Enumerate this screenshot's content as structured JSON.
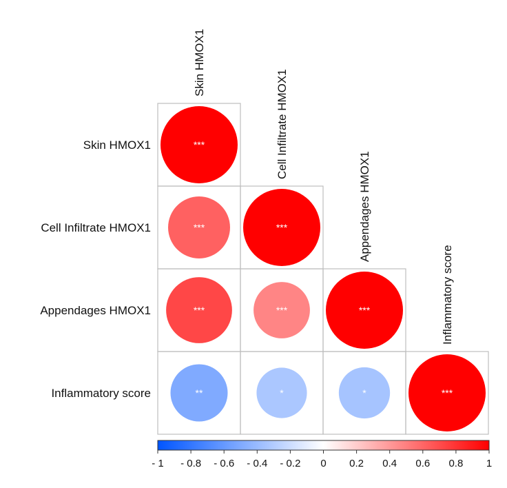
{
  "chart_data": {
    "type": "heatmap",
    "subtype": "correlogram-lower-triangle",
    "variables": [
      "Skin HMOX1",
      "Cell Infiltrate HMOX1",
      "Appendages HMOX1",
      "Inflammatory score"
    ],
    "correlations": [
      [
        1.0,
        null,
        null,
        null
      ],
      [
        0.62,
        1.0,
        null,
        null
      ],
      [
        0.72,
        0.48,
        1.0,
        null
      ],
      [
        -0.5,
        -0.33,
        -0.35,
        1.0
      ]
    ],
    "significance": [
      [
        "***",
        null,
        null,
        null
      ],
      [
        "***",
        "***",
        null,
        null
      ],
      [
        "***",
        "***",
        "***",
        null
      ],
      [
        "**",
        "*",
        "*",
        "***"
      ]
    ],
    "colorbar": {
      "min": -1,
      "max": 1,
      "ticks": [
        -1,
        -0.8,
        -0.6,
        -0.4,
        -0.2,
        0,
        0.2,
        0.4,
        0.6,
        0.8,
        1
      ],
      "tick_labels": [
        "- 1",
        "- 0.8",
        "- 0.6",
        "- 0.4",
        "- 0.2",
        "0",
        "0.2",
        "0.4",
        "0.6",
        "0.8",
        "1"
      ],
      "colors": {
        "negative": "#0055ff",
        "zero": "#ffffff",
        "positive": "#ff0000"
      }
    },
    "legend_position": "bottom"
  }
}
